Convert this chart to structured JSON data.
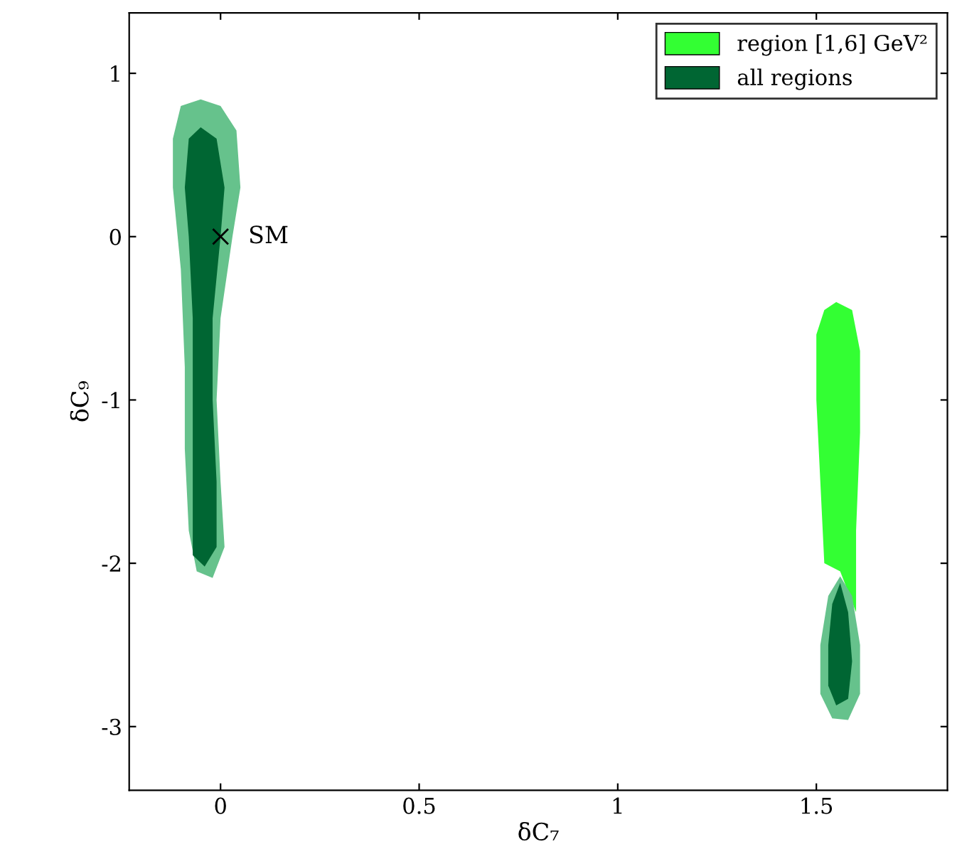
{
  "chart_data": {
    "type": "area",
    "xlabel": "δC₇",
    "ylabel": "δC₉",
    "xlim": [
      -0.23,
      1.83
    ],
    "ylim": [
      -3.39,
      1.37
    ],
    "xticks": [
      0,
      0.5,
      1,
      1.5
    ],
    "yticks": [
      -3,
      -2,
      -1,
      0,
      1
    ],
    "legend": "top right",
    "grid": false,
    "annotations": [
      {
        "text": "SM",
        "x": 0,
        "y": 0
      }
    ],
    "series": [
      {
        "color": "#66c28c",
        "x": [
          -0.05,
          0.0,
          0.04,
          0.05,
          0.03,
          0.0,
          -0.01,
          0.0,
          0.01,
          -0.02,
          -0.06,
          -0.08,
          -0.09,
          -0.09,
          -0.1,
          -0.12,
          -0.12,
          -0.1,
          -0.05
        ],
        "values": [
          0.84,
          0.8,
          0.65,
          0.3,
          0.0,
          -0.5,
          -1.0,
          -1.5,
          -1.9,
          -2.09,
          -2.05,
          -1.8,
          -1.3,
          -0.8,
          -0.2,
          0.3,
          0.6,
          0.8,
          0.84
        ]
      },
      {
        "name": "region [1,6] GeV²",
        "color": "#33ff33",
        "x": [
          1.55,
          1.59,
          1.61,
          1.61,
          1.6,
          1.6,
          1.56,
          1.52,
          1.51,
          1.5,
          1.5,
          1.52,
          1.55
        ],
        "values": [
          -0.4,
          -0.45,
          -0.7,
          -1.2,
          -1.8,
          -2.3,
          -2.05,
          -2.0,
          -1.5,
          -1.0,
          -0.6,
          -0.45,
          -0.4
        ]
      },
      {
        "color": "#66c28c",
        "x": [
          1.56,
          1.59,
          1.61,
          1.61,
          1.58,
          1.54,
          1.51,
          1.51,
          1.53,
          1.56
        ],
        "values": [
          -2.08,
          -2.2,
          -2.5,
          -2.8,
          -2.96,
          -2.95,
          -2.8,
          -2.5,
          -2.2,
          -2.08
        ]
      },
      {
        "name": "all regions",
        "color": "#006633",
        "x": [
          -0.05,
          -0.01,
          0.01,
          0.0,
          -0.02,
          -0.02,
          -0.01,
          -0.01,
          -0.04,
          -0.07,
          -0.07,
          -0.07,
          -0.07,
          -0.08,
          -0.09,
          -0.08,
          -0.05
        ],
        "values": [
          0.67,
          0.6,
          0.3,
          0.0,
          -0.5,
          -1.0,
          -1.5,
          -1.9,
          -2.02,
          -1.95,
          -1.5,
          -1.0,
          -0.5,
          0.0,
          0.3,
          0.6,
          0.67
        ]
      },
      {
        "color": "#006633",
        "x": [
          1.56,
          1.58,
          1.59,
          1.58,
          1.55,
          1.53,
          1.53,
          1.54,
          1.56
        ],
        "values": [
          -2.12,
          -2.3,
          -2.6,
          -2.83,
          -2.87,
          -2.75,
          -2.5,
          -2.25,
          -2.12
        ]
      },
      {
        "type": "scatter",
        "marker": "cross",
        "color": "#000000",
        "x": [
          0
        ],
        "values": [
          0
        ]
      }
    ]
  }
}
